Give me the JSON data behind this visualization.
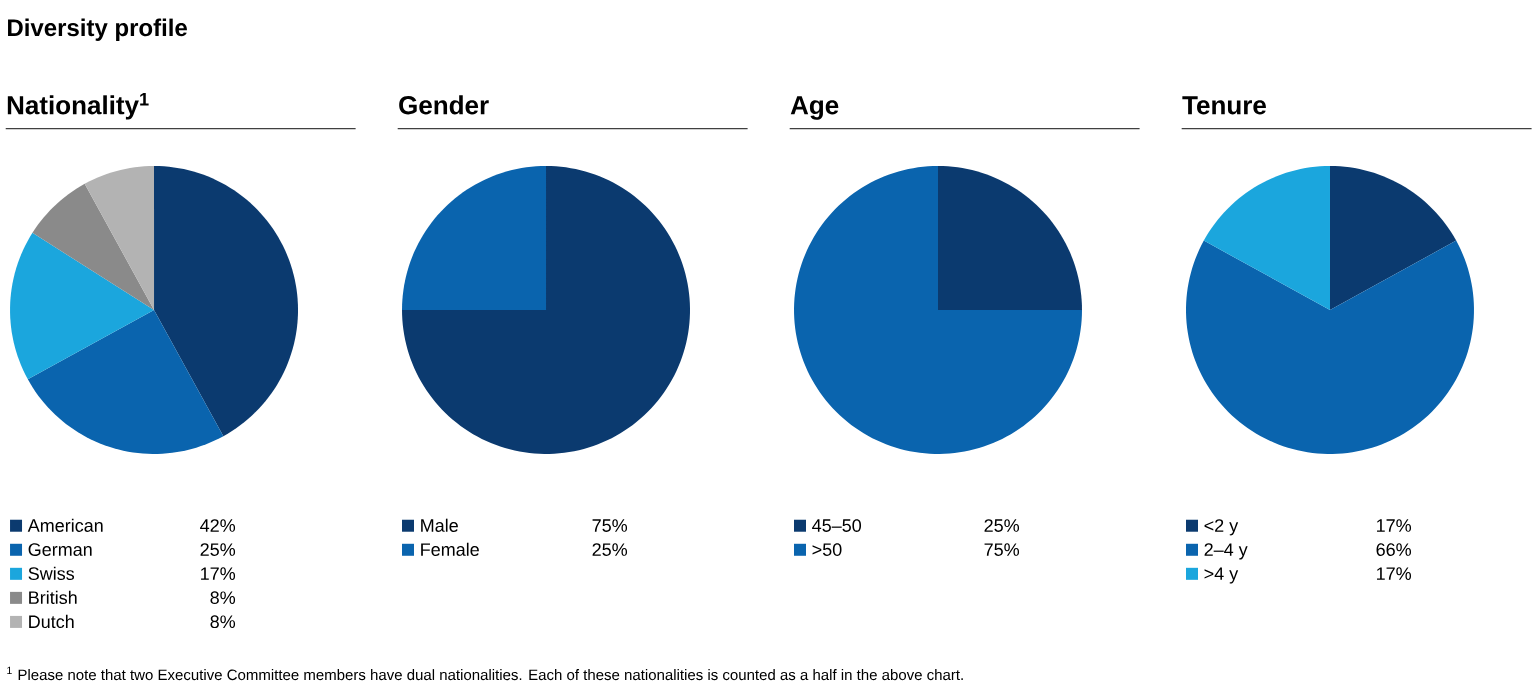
{
  "chart_data": [
    {
      "type": "other",
      "title": "Diversity profile",
      "annotations": [
        "$^{1}$ Please note that two Executive Committee members have dual nationalities. Each of these nationalities is counted as a half in the above chart."
      ]
    },
    {
      "type": "pie",
      "title": "Nationality$^{1}$",
      "categories": [
        "American",
        "German",
        "Swiss",
        "British",
        "Dutch"
      ],
      "values": [
        42,
        25,
        17,
        8,
        8
      ],
      "value_labels": [
        "42%",
        "25%",
        "17%",
        "8%",
        "8%"
      ],
      "colors": [
        "#0b3a6f",
        "#0a64ae",
        "#1ba6dd",
        "#8a8a8a",
        "#b3b3b3"
      ],
      "legend": "bottom"
    },
    {
      "type": "pie",
      "title": "Gender",
      "categories": [
        "Male",
        "Female"
      ],
      "values": [
        75,
        25
      ],
      "value_labels": [
        "75%",
        "25%"
      ],
      "colors": [
        "#0b3a6f",
        "#0a64ae"
      ],
      "legend": "bottom"
    },
    {
      "type": "pie",
      "title": "Age",
      "categories": [
        "45–50",
        ">50"
      ],
      "values": [
        25,
        75
      ],
      "value_labels": [
        "25%",
        "75%"
      ],
      "colors": [
        "#0b3a6f",
        "#0a64ae"
      ],
      "legend": "bottom"
    },
    {
      "type": "pie",
      "title": "Tenure",
      "categories": [
        "<2 y",
        "2–4 y",
        ">4 y"
      ],
      "values": [
        17,
        66,
        17
      ],
      "value_labels": [
        "17%",
        "66%",
        "17%"
      ],
      "colors": [
        "#0b3a6f",
        "#0a64ae",
        "#1ba6dd"
      ],
      "legend": "bottom"
    }
  ]
}
